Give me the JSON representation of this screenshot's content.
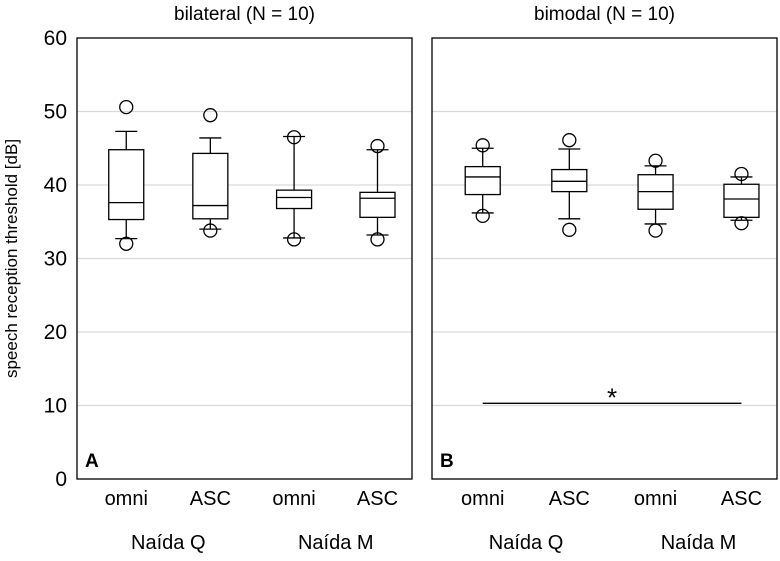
{
  "chart_data": {
    "type": "box",
    "ylabel": "speech reception threshold [dB]",
    "ylim": [
      0,
      60
    ],
    "yticks": [
      0,
      10,
      20,
      30,
      40,
      50,
      60
    ],
    "grid": true,
    "panels": [
      {
        "letter": "A",
        "title": "bilateral (N = 10)",
        "groups": [
          {
            "label": "Naída Q",
            "categories": [
              "omni",
              "ASC"
            ]
          },
          {
            "label": "Naída M",
            "categories": [
              "omni",
              "ASC"
            ]
          }
        ],
        "boxes": [
          {
            "group": "Naída Q",
            "category": "omni",
            "whisker_low": 32.7,
            "q1": 35.3,
            "median": 37.6,
            "q3": 44.8,
            "whisker_high": 47.3,
            "outliers": [
              50.6,
              32.0
            ]
          },
          {
            "group": "Naída Q",
            "category": "ASC",
            "whisker_low": 34.0,
            "q1": 35.4,
            "median": 37.2,
            "q3": 44.3,
            "whisker_high": 46.4,
            "outliers": [
              49.5,
              33.8
            ]
          },
          {
            "group": "Naída M",
            "category": "omni",
            "whisker_low": 32.8,
            "q1": 36.8,
            "median": 38.3,
            "q3": 39.3,
            "whisker_high": 46.6,
            "outliers": [
              46.5,
              32.6
            ]
          },
          {
            "group": "Naída M",
            "category": "ASC",
            "whisker_low": 33.2,
            "q1": 35.6,
            "median": 38.2,
            "q3": 39.0,
            "whisker_high": 44.8,
            "outliers": [
              45.3,
              32.6
            ]
          }
        ]
      },
      {
        "letter": "B",
        "title": "bimodal (N = 10)",
        "groups": [
          {
            "label": "Naída Q",
            "categories": [
              "omni",
              "ASC"
            ]
          },
          {
            "label": "Naída M",
            "categories": [
              "omni",
              "ASC"
            ]
          }
        ],
        "boxes": [
          {
            "group": "Naída Q",
            "category": "omni",
            "whisker_low": 36.2,
            "q1": 38.7,
            "median": 41.1,
            "q3": 42.5,
            "whisker_high": 45.0,
            "outliers": [
              45.4,
              35.8
            ]
          },
          {
            "group": "Naída Q",
            "category": "ASC",
            "whisker_low": 35.4,
            "q1": 39.1,
            "median": 40.5,
            "q3": 42.1,
            "whisker_high": 44.9,
            "outliers": [
              46.1,
              33.9
            ]
          },
          {
            "group": "Naída M",
            "category": "omni",
            "whisker_low": 34.7,
            "q1": 36.7,
            "median": 39.1,
            "q3": 41.4,
            "whisker_high": 42.6,
            "outliers": [
              43.3,
              33.8
            ]
          },
          {
            "group": "Naída M",
            "category": "ASC",
            "whisker_low": 35.2,
            "q1": 35.6,
            "median": 38.1,
            "q3": 40.1,
            "whisker_high": 41.1,
            "outliers": [
              41.5,
              34.8
            ]
          }
        ],
        "annotations": [
          {
            "type": "significance",
            "from": "Naída Q omni",
            "to": "Naída M ASC",
            "y": 10.3,
            "label": "*"
          }
        ]
      }
    ]
  }
}
